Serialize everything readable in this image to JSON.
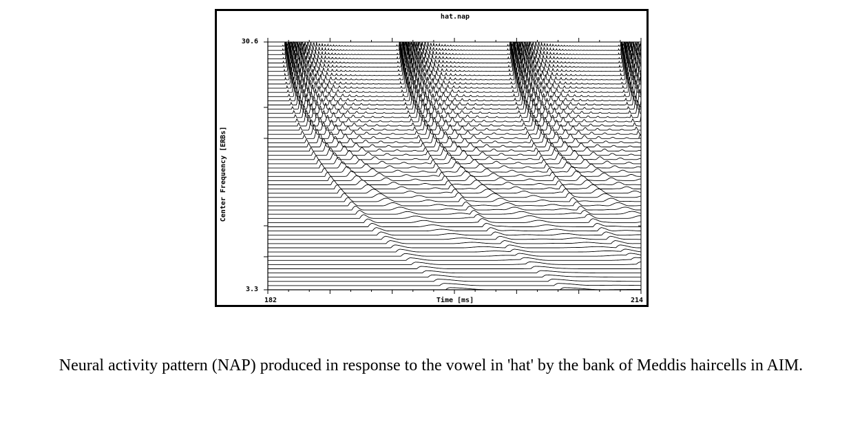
{
  "caption": "Neural activity pattern (NAP) produced in response to the vowel in 'hat' by the bank of Meddis haircells in AIM.",
  "chart_data": {
    "type": "line",
    "title": "hat.nap",
    "xlabel": "Time [ms]",
    "ylabel": "Center Frequency [ERBs]",
    "xlim": [
      182,
      214
    ],
    "ylim": [
      3.3,
      30.6
    ],
    "x_tick_labels": [
      "182",
      "214"
    ],
    "y_tick_labels": [
      "3.3",
      "30.6"
    ],
    "channels": 60,
    "glottal_pulse_times_ms": [
      183.0,
      192.8,
      202.3,
      211.8
    ],
    "line_color": "#000000",
    "grid": false
  }
}
